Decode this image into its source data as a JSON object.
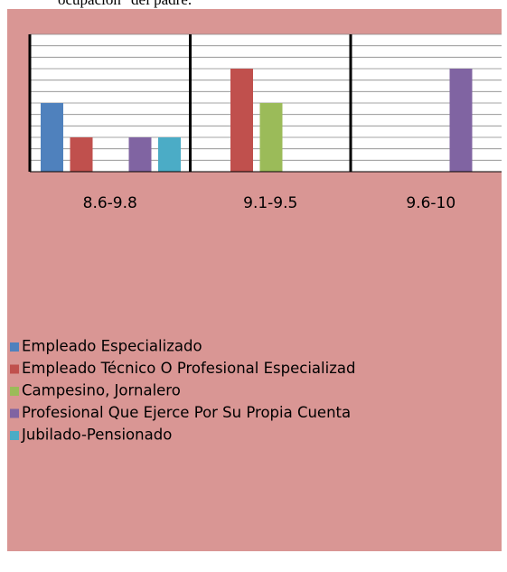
{
  "caption": "ocupación\" del padre.",
  "chart_data": {
    "type": "bar",
    "categories": [
      "8.6-9.8",
      "9.1-9.5",
      "9.6-10"
    ],
    "series": [
      {
        "name": "Empleado Especializado",
        "color": "#4f81bd",
        "values": [
          6,
          null,
          null
        ]
      },
      {
        "name": "Empleado Técnico O Profesional Especializad",
        "color": "#c0504d",
        "values": [
          3,
          9,
          null
        ]
      },
      {
        "name": "Campesino, Jornalero",
        "color": "#9bbb59",
        "values": [
          null,
          6,
          null
        ]
      },
      {
        "name": "Profesional Que Ejerce Por Su Propia Cuenta",
        "color": "#8064a2",
        "values": [
          3,
          null,
          9
        ]
      },
      {
        "name": "Jubilado-Pensionado",
        "color": "#4bacc6",
        "values": [
          3,
          null,
          null
        ]
      }
    ],
    "ylim": [
      0,
      12
    ],
    "yticks": [
      0,
      1,
      2,
      3,
      4,
      5,
      6,
      7,
      8,
      9,
      10,
      11,
      12
    ],
    "grid": true
  }
}
